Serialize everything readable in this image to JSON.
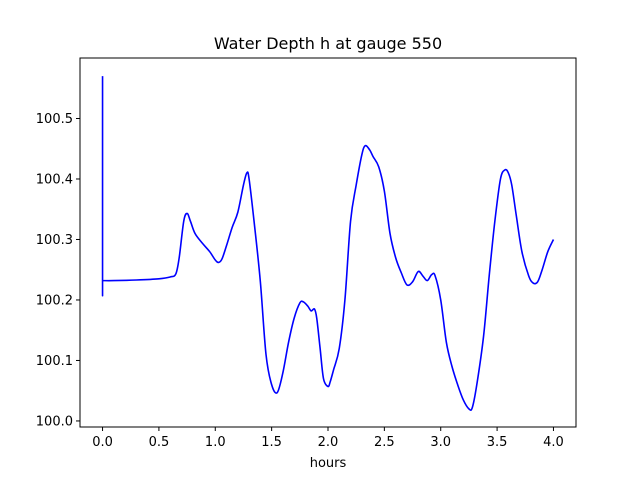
{
  "chart_data": {
    "type": "line",
    "title": "Water Depth h at gauge 550",
    "xlabel": "hours",
    "ylabel": "",
    "xlim": [
      -0.2,
      4.2
    ],
    "ylim": [
      99.99,
      100.6
    ],
    "grid": false,
    "x_ticks": [
      0.0,
      0.5,
      1.0,
      1.5,
      2.0,
      2.5,
      3.0,
      3.5,
      4.0
    ],
    "x_tick_labels": [
      "0.0",
      "0.5",
      "1.0",
      "1.5",
      "2.0",
      "2.5",
      "3.0",
      "3.5",
      "4.0"
    ],
    "y_ticks": [
      100.0,
      100.1,
      100.2,
      100.3,
      100.4,
      100.5
    ],
    "y_tick_labels": [
      "100.0",
      "100.1",
      "100.2",
      "100.3",
      "100.4",
      "100.5"
    ],
    "colors": {
      "line": "#0000ff",
      "axes": "#000000",
      "background": "#ffffff"
    },
    "series": [
      {
        "x": [
          0.0,
          0.0,
          0.0,
          0.1,
          0.3,
          0.5,
          0.6,
          0.65,
          0.68,
          0.72,
          0.75,
          0.78,
          0.82,
          0.88,
          0.95,
          1.0,
          1.03,
          1.06,
          1.1,
          1.15,
          1.2,
          1.25,
          1.28,
          1.3,
          1.35,
          1.4,
          1.45,
          1.5,
          1.55,
          1.6,
          1.65,
          1.7,
          1.75,
          1.78,
          1.82,
          1.85,
          1.88,
          1.9,
          1.93,
          1.96,
          2.0,
          2.02,
          2.05,
          2.1,
          2.15,
          2.2,
          2.25,
          2.3,
          2.33,
          2.37,
          2.4,
          2.45,
          2.5,
          2.55,
          2.6,
          2.65,
          2.7,
          2.75,
          2.8,
          2.84,
          2.88,
          2.92,
          2.95,
          3.0,
          3.05,
          3.1,
          3.15,
          3.2,
          3.25,
          3.28,
          3.32,
          3.38,
          3.43,
          3.48,
          3.53,
          3.57,
          3.6,
          3.63,
          3.67,
          3.72,
          3.78,
          3.82,
          3.86,
          3.9,
          3.95,
          4.0
        ],
        "y": [
          100.57,
          100.232,
          100.232,
          100.232,
          100.233,
          100.235,
          100.238,
          100.243,
          100.27,
          100.33,
          100.343,
          100.33,
          100.31,
          100.295,
          100.28,
          100.266,
          100.262,
          100.268,
          100.29,
          100.32,
          100.345,
          100.39,
          100.41,
          100.4,
          100.32,
          100.23,
          100.11,
          100.06,
          100.047,
          100.08,
          100.13,
          100.17,
          100.195,
          100.197,
          100.19,
          100.182,
          100.185,
          100.17,
          100.12,
          100.07,
          100.057,
          100.065,
          100.085,
          100.12,
          100.2,
          100.33,
          100.39,
          100.44,
          100.455,
          100.448,
          100.437,
          100.42,
          100.38,
          100.31,
          100.27,
          100.245,
          100.225,
          100.23,
          100.247,
          100.24,
          100.232,
          100.242,
          100.24,
          100.2,
          100.13,
          100.09,
          100.06,
          100.035,
          100.02,
          100.022,
          100.06,
          100.14,
          100.24,
          100.33,
          100.4,
          100.415,
          100.41,
          100.39,
          100.34,
          100.28,
          100.24,
          100.228,
          100.23,
          100.25,
          100.28,
          100.3
        ]
      }
    ]
  }
}
